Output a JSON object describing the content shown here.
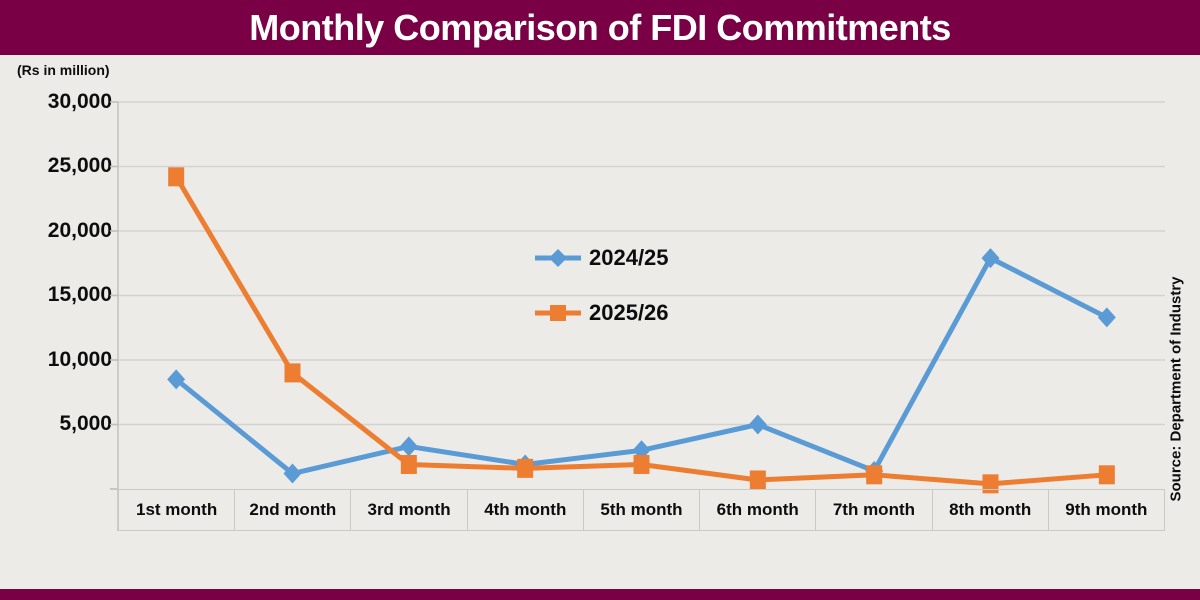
{
  "title": "Monthly Comparison of FDI Commitments",
  "unit_label": "(Rs in million)",
  "source": "Source: Department of Industry",
  "colors": {
    "header_bg": "#7A0045",
    "background": "#ECEBE8",
    "gridline": "#D3D3D0",
    "axis": "#BEBEBB",
    "blue_series": "#5B9BD5",
    "orange_series": "#ED7D31"
  },
  "axis": {
    "y_tick_labels": [
      "30,000",
      "25,000",
      "20,000",
      "15,000",
      "10,000",
      "5,000"
    ],
    "y_tick_values": [
      30000,
      25000,
      20000,
      15000,
      10000,
      5000
    ]
  },
  "chart_data": {
    "type": "line",
    "title": "Monthly Comparison of FDI Commitments",
    "ylabel": "(Rs in million)",
    "xlabel": "",
    "ylim": [
      0,
      30000
    ],
    "grid": true,
    "legend_position": "center",
    "categories": [
      "1st month",
      "2nd month",
      "3rd month",
      "4th month",
      "5th month",
      "6th month",
      "7th month",
      "8th month",
      "9th month"
    ],
    "series": [
      {
        "name": "2024/25",
        "color": "#5B9BD5",
        "marker": "diamond",
        "values": [
          8500,
          1200,
          3300,
          1900,
          3000,
          5000,
          1400,
          17900,
          13300
        ]
      },
      {
        "name": "2025/26",
        "color": "#ED7D31",
        "marker": "square",
        "values": [
          24200,
          9000,
          1900,
          1600,
          1900,
          700,
          1100,
          400,
          1100
        ]
      }
    ]
  }
}
